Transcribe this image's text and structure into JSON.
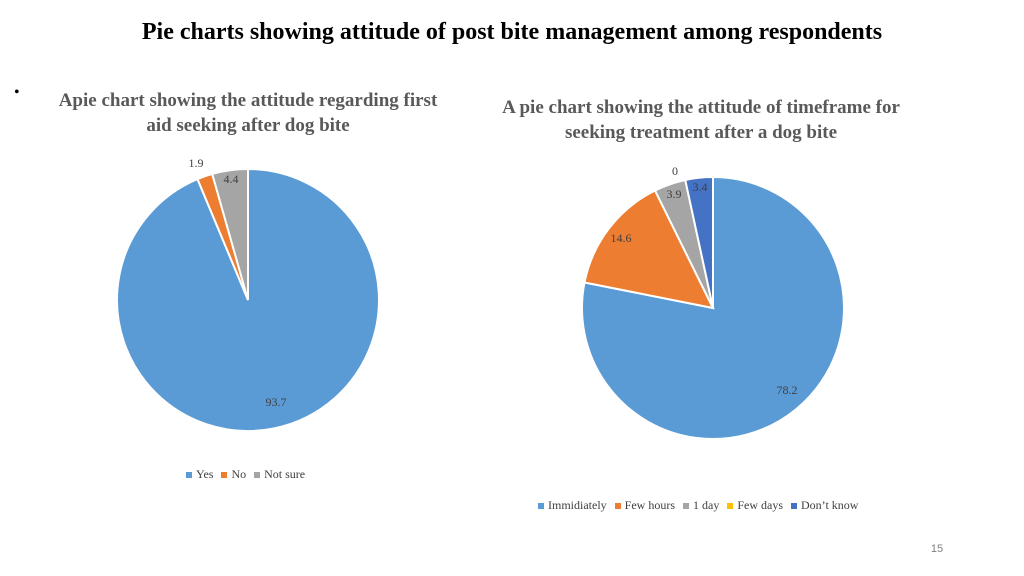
{
  "slide": {
    "title": "Pie charts showing attitude of post bite management among respondents",
    "bullet": "•",
    "page_number": "15"
  },
  "chart_data": [
    {
      "type": "pie",
      "title": "Apie chart showing the attitude regarding first aid seeking after dog bite",
      "categories": [
        "Yes",
        "No",
        "Not sure"
      ],
      "values": [
        93.7,
        1.9,
        4.4
      ],
      "labels": [
        "93.7",
        "1.9",
        "4.4"
      ],
      "colors": [
        "#5B9BD5",
        "#ED7D31",
        "#A5A5A5"
      ],
      "legend_position": "bottom"
    },
    {
      "type": "pie",
      "title": "A pie chart showing the attitude of timeframe for seeking treatment after a dog bite",
      "categories": [
        "Immidiately",
        "Few hours",
        "1 day",
        "Few days",
        "Don’t know"
      ],
      "values": [
        78.2,
        14.6,
        3.9,
        0,
        3.4
      ],
      "labels": [
        "78.2",
        "14.6",
        "3.9",
        "0",
        "3.4"
      ],
      "colors": [
        "#5B9BD5",
        "#ED7D31",
        "#A5A5A5",
        "#FFC000",
        "#4472C4"
      ],
      "legend_position": "bottom"
    }
  ]
}
